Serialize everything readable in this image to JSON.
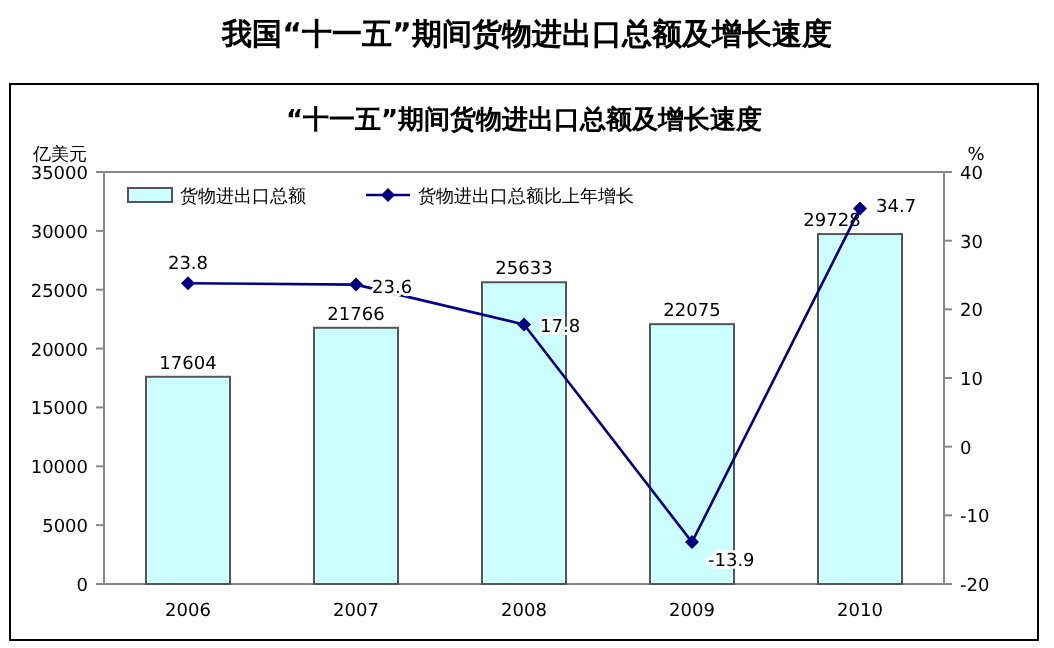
{
  "chart_data": {
    "type": "bar",
    "title": "我国“十一五”期间货物进出口总额及增长速度",
    "subtitle": "“十一五”期间货物进出口总额及增长速度",
    "ylabel": "亿美元",
    "y2label": "%",
    "categories": [
      "2006",
      "2007",
      "2008",
      "2009",
      "2010"
    ],
    "series": [
      {
        "name": "货物进出口总额",
        "color": "#ccffff",
        "values": [
          17604,
          21766,
          25633,
          22075,
          29728
        ]
      },
      {
        "name": "货物进出口总额比上年增长",
        "type": "line",
        "axis": "y2",
        "color": "#000080",
        "values": [
          23.8,
          23.6,
          17.8,
          -13.9,
          34.7
        ]
      }
    ],
    "ylim": [
      0,
      35000
    ],
    "yticks": [
      0,
      5000,
      10000,
      15000,
      20000,
      25000,
      30000,
      35000
    ],
    "y2lim": [
      -20,
      40
    ],
    "y2ticks": [
      -20,
      -10,
      0,
      10,
      20,
      30,
      40
    ],
    "data_labels": true,
    "legend": "top",
    "marker": "diamond",
    "grid": false
  }
}
